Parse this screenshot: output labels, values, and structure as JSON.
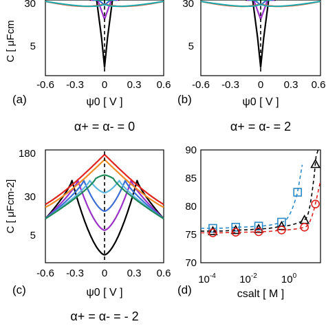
{
  "colors": {
    "black": "#000000",
    "purple": "#9b30c8",
    "blue": "#3b6fd6",
    "teal": "#1aa8b0",
    "lightblue": "#5fb7e0",
    "green": "#1f8a5a",
    "orange": "#f28c28",
    "red": "#e0221f",
    "d_blue": "#2a8ac8",
    "d_black": "#000000",
    "d_red": "#e0221f"
  },
  "panels": {
    "a": {
      "tag": "(a)",
      "xlabel": "ψ0 [ V ]",
      "ylabel": "C [ μFcm",
      "caption": "α+ = α- = 0"
    },
    "b": {
      "tag": "(b)",
      "xlabel": "ψ0 [ V ]",
      "caption": "α+ = α- = 2"
    },
    "c": {
      "tag": "(c)",
      "xlabel": "ψ0 [ V ]",
      "ylabel": "C [ μFcm-2]",
      "caption": "α+ = α- = - 2"
    },
    "d": {
      "tag": "(d)",
      "xlabel": "csalt [ M ]"
    }
  },
  "chart_data": [
    {
      "panel": "a",
      "type": "line",
      "xlabel": "ψ0 [ V ]",
      "ylabel": "C [ μFcm",
      "x_ticks": [
        "-0.6",
        "-0.3",
        "0",
        "0.3",
        "0.6"
      ],
      "y_ticks_visible": [
        "5",
        "30"
      ],
      "xlim": [
        -0.6,
        0.6
      ],
      "yscale": "log",
      "series": [
        {
          "color": "black",
          "points": [
            [
              -0.15,
              60
            ],
            [
              -0.08,
              18
            ],
            [
              -0.03,
              5
            ],
            [
              0,
              2
            ],
            [
              0.03,
              5
            ],
            [
              0.08,
              18
            ],
            [
              0.15,
              60
            ]
          ]
        },
        {
          "color": "purple",
          "points": [
            [
              -0.14,
              60
            ],
            [
              -0.07,
              22
            ],
            [
              0,
              9
            ],
            [
              0.07,
              22
            ],
            [
              0.14,
              60
            ]
          ]
        },
        {
          "color": "blue",
          "points": [
            [
              -0.12,
              60
            ],
            [
              -0.06,
              28
            ],
            [
              0,
              14
            ],
            [
              0.06,
              28
            ],
            [
              0.12,
              60
            ]
          ]
        },
        {
          "color": "teal",
          "points": [
            [
              -0.1,
              60
            ],
            [
              -0.05,
              34
            ],
            [
              0,
              22
            ],
            [
              0.05,
              34
            ],
            [
              0.1,
              60
            ]
          ]
        },
        {
          "color": "green",
          "points": [
            [
              -0.07,
              60
            ],
            [
              -0.03,
              45
            ],
            [
              0,
              36
            ],
            [
              0.03,
              45
            ],
            [
              0.07,
              60
            ]
          ]
        }
      ]
    },
    {
      "panel": "b",
      "type": "line",
      "xlabel": "ψ0 [ V ]",
      "x_ticks": [
        "-0.6",
        "-0.3",
        "0",
        "0.3",
        "0.6"
      ],
      "y_ticks_visible": [
        "5",
        "30"
      ],
      "xlim": [
        -0.6,
        0.6
      ],
      "yscale": "log"
    },
    {
      "panel": "c",
      "type": "line",
      "xlabel": "ψ0 [ V ]",
      "ylabel": "C [ μFcm-2]",
      "x_ticks": [
        "-0.6",
        "-0.3",
        "0",
        "0.3",
        "0.6"
      ],
      "y_ticks": [
        "5",
        "30",
        "180"
      ],
      "xlim": [
        -0.6,
        0.6
      ],
      "ylim": [
        1,
        180
      ],
      "yscale": "log",
      "series": [
        {
          "color": "black",
          "peak": 0.33,
          "cmax": 55,
          "cmin": 2
        },
        {
          "color": "purple",
          "peak": 0.27,
          "cmax": 55,
          "cmin": 6
        },
        {
          "color": "blue",
          "peak": 0.21,
          "cmax": 55,
          "cmin": 14
        },
        {
          "color": "lightblue",
          "peak": 0.15,
          "cmax": 55,
          "cmin": 32
        },
        {
          "color": "green",
          "peak": 0.09,
          "cmax": 60,
          "cmin": 70
        },
        {
          "color": "orange",
          "peak": 0.0,
          "cmax": 140,
          "cmin": 140
        },
        {
          "color": "red",
          "peak": 0.0,
          "cmax": 175,
          "cmin": 175
        }
      ]
    },
    {
      "panel": "d",
      "type": "scatter",
      "xlabel": "csalt [ M ]",
      "xscale": "log",
      "xlim": [
        3e-05,
        5
      ],
      "ylim": [
        70,
        90
      ],
      "x_ticks": [
        "10-4",
        "10-2",
        "100"
      ],
      "y_ticks": [
        "70",
        "75",
        "80",
        "85",
        "90"
      ],
      "series": [
        {
          "marker": "square",
          "color": "d_blue",
          "x": [
            0.0001,
            0.001,
            0.01,
            0.1,
            0.5
          ],
          "y": [
            76.1,
            76.3,
            76.5,
            77.2,
            82.5
          ]
        },
        {
          "marker": "triangle",
          "color": "d_black",
          "x": [
            0.0001,
            0.001,
            0.01,
            0.1,
            1.0,
            3.0
          ],
          "y": [
            75.6,
            75.8,
            76.0,
            76.5,
            77.6,
            87.5
          ]
        },
        {
          "marker": "circle",
          "color": "d_red",
          "x": [
            0.0001,
            0.001,
            0.01,
            0.1,
            1.0,
            3.0
          ],
          "y": [
            75.3,
            75.4,
            75.5,
            75.8,
            76.3,
            80.4
          ]
        }
      ]
    }
  ]
}
